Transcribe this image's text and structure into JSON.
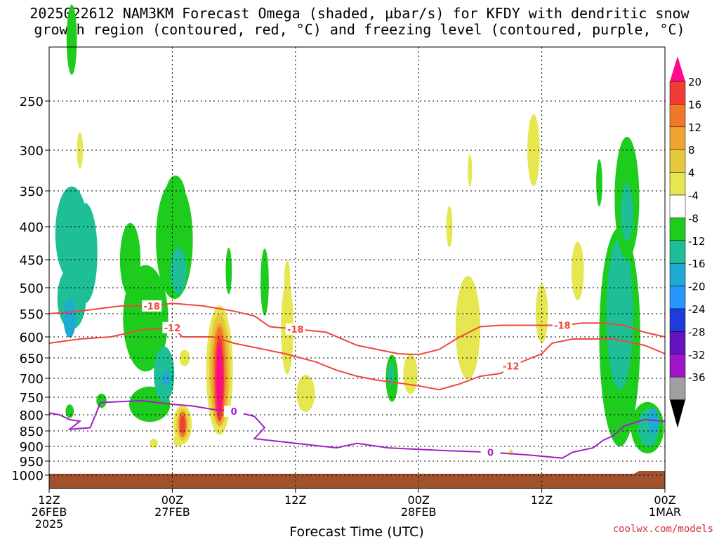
{
  "title": {
    "line1": "2025022612 NAM3KM Forecast Omega (shaded, µbar/s) for KFDY with dendritic snow",
    "line2": "growth region (contoured, red, °C) and freezing level (contoured, purple, °C)"
  },
  "watermark": "coolwx.com/models",
  "chart_data": {
    "type": "heatmap",
    "xlabel": "Forecast Time (UTC)",
    "ylabel": "",
    "x_range_hours": [
      0,
      60
    ],
    "x_ticks": [
      {
        "hour": 0,
        "lines": [
          "12Z",
          "26FEB",
          "2025"
        ]
      },
      {
        "hour": 12,
        "lines": [
          "00Z",
          "27FEB"
        ]
      },
      {
        "hour": 24,
        "lines": [
          "12Z"
        ]
      },
      {
        "hour": 36,
        "lines": [
          "00Z",
          "28FEB"
        ]
      },
      {
        "hour": 48,
        "lines": [
          "12Z"
        ]
      },
      {
        "hour": 60,
        "lines": [
          "00Z",
          "1MAR"
        ]
      }
    ],
    "y_axis": "pressure (hPa), reversed",
    "y_ticks": [
      250,
      300,
      350,
      400,
      450,
      500,
      550,
      600,
      650,
      700,
      750,
      800,
      850,
      900,
      950,
      1000
    ],
    "colorbar": {
      "labels": [
        "20",
        "16",
        "12",
        "8",
        "4",
        "-4",
        "-8",
        "-12",
        "-16",
        "-20",
        "-24",
        "-28",
        "-32",
        "-36"
      ],
      "colors": [
        "#ff0a8c",
        "#f03c32",
        "#f07828",
        "#f0a532",
        "#e6c83c",
        "#e6e650",
        "#ffffff",
        "#1ecc1e",
        "#1ebe96",
        "#1eaad2",
        "#2896ff",
        "#1e3cdc",
        "#6414be",
        "#a014c8",
        "#a0a0a0",
        "#000000"
      ]
    },
    "contours": [
      {
        "kind": "temperature",
        "label": "-18",
        "color": "#f0463c",
        "points": [
          [
            0,
            550
          ],
          [
            3,
            545
          ],
          [
            7,
            535
          ],
          [
            10,
            535
          ],
          [
            12,
            530
          ],
          [
            15,
            535
          ],
          [
            18,
            545
          ],
          [
            20,
            555
          ],
          [
            21.5,
            578
          ],
          [
            24,
            583
          ],
          [
            27,
            590
          ],
          [
            30,
            620
          ],
          [
            32,
            630
          ],
          [
            34,
            640
          ],
          [
            36,
            642
          ],
          [
            38,
            630
          ],
          [
            40,
            600
          ],
          [
            42,
            578
          ],
          [
            44,
            575
          ],
          [
            46,
            575
          ],
          [
            48,
            575
          ],
          [
            50,
            575
          ],
          [
            52,
            570
          ],
          [
            54,
            570
          ],
          [
            56,
            575
          ],
          [
            58,
            590
          ],
          [
            60,
            600
          ]
        ]
      },
      {
        "kind": "temperature",
        "label": "-12",
        "color": "#f0463c",
        "points": [
          [
            0,
            615
          ],
          [
            3,
            605
          ],
          [
            6,
            600
          ],
          [
            9,
            585
          ],
          [
            12,
            580
          ],
          [
            13,
            600
          ],
          [
            14,
            600
          ],
          [
            16,
            600
          ],
          [
            18,
            615
          ],
          [
            20,
            625
          ],
          [
            23,
            640
          ],
          [
            26,
            660
          ],
          [
            28,
            680
          ],
          [
            30,
            695
          ],
          [
            32,
            705
          ],
          [
            34,
            712
          ],
          [
            36,
            720
          ],
          [
            38,
            730
          ],
          [
            40,
            715
          ],
          [
            42,
            695
          ],
          [
            44,
            688
          ],
          [
            45,
            670
          ],
          [
            47,
            650
          ],
          [
            48,
            640
          ],
          [
            49,
            615
          ],
          [
            51,
            605
          ],
          [
            55,
            605
          ],
          [
            58,
            620
          ],
          [
            60,
            640
          ]
        ]
      },
      {
        "kind": "freezing",
        "label": "0",
        "color": "#a020c8",
        "points": [
          [
            0,
            795
          ],
          [
            1,
            800
          ],
          [
            2,
            815
          ],
          [
            3,
            820
          ],
          [
            2,
            845
          ],
          [
            4,
            840
          ],
          [
            5,
            765
          ],
          [
            9,
            760
          ],
          [
            12,
            770
          ],
          [
            14,
            775
          ],
          [
            16,
            785
          ],
          [
            18,
            790
          ],
          [
            20,
            805
          ],
          [
            21,
            840
          ],
          [
            20,
            875
          ],
          [
            24,
            890
          ],
          [
            28,
            905
          ],
          [
            30,
            890
          ],
          [
            33,
            905
          ],
          [
            36,
            910
          ],
          [
            39,
            915
          ],
          [
            43,
            920
          ],
          [
            45,
            925
          ],
          [
            47,
            930
          ],
          [
            50,
            940
          ],
          [
            51,
            920
          ],
          [
            53,
            905
          ],
          [
            54,
            880
          ],
          [
            55,
            865
          ],
          [
            56,
            835
          ],
          [
            58,
            815
          ],
          [
            60,
            820
          ]
        ]
      }
    ],
    "ground_pressure_hpa": 995
  }
}
